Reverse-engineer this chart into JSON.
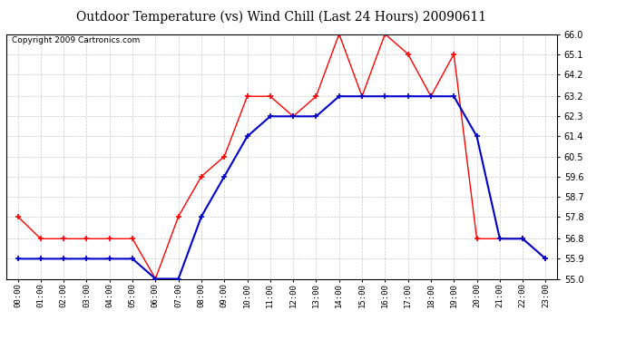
{
  "title": "Outdoor Temperature (vs) Wind Chill (Last 24 Hours) 20090611",
  "copyright": "Copyright 2009 Cartronics.com",
  "x_labels": [
    "00:00",
    "01:00",
    "02:00",
    "03:00",
    "04:00",
    "05:00",
    "06:00",
    "07:00",
    "08:00",
    "09:00",
    "10:00",
    "11:00",
    "12:00",
    "13:00",
    "14:00",
    "15:00",
    "16:00",
    "17:00",
    "18:00",
    "19:00",
    "20:00",
    "21:00",
    "22:00",
    "23:00"
  ],
  "ylim": [
    55.0,
    66.0
  ],
  "yticks": [
    55.0,
    55.9,
    56.8,
    57.8,
    58.7,
    59.6,
    60.5,
    61.4,
    62.3,
    63.2,
    64.2,
    65.1,
    66.0
  ],
  "temp_red": [
    57.8,
    56.8,
    56.8,
    56.8,
    56.8,
    56.8,
    55.0,
    57.8,
    59.6,
    60.5,
    63.2,
    63.2,
    62.3,
    63.2,
    66.0,
    63.2,
    66.0,
    65.1,
    63.2,
    65.1,
    56.8,
    56.8,
    56.8,
    55.9
  ],
  "temp_blue": [
    55.9,
    55.9,
    55.9,
    55.9,
    55.9,
    55.9,
    55.0,
    55.0,
    57.8,
    59.6,
    61.4,
    62.3,
    62.3,
    62.3,
    63.2,
    63.2,
    63.2,
    63.2,
    63.2,
    63.2,
    61.4,
    56.8,
    56.8,
    55.9
  ],
  "line_color_red": "#ff0000",
  "line_color_blue": "#0000cc",
  "bg_color": "#ffffff",
  "grid_color": "#bbbbbb",
  "title_fontsize": 10,
  "copyright_fontsize": 6.5
}
